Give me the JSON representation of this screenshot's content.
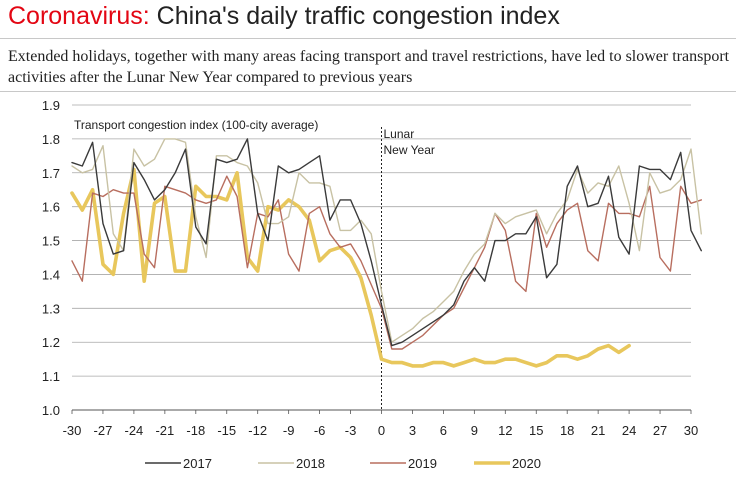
{
  "header": {
    "title_lead": "Coronavirus:",
    "title_rest": " China's daily traffic congestion index",
    "subtitle": "Extended holidays, together with many areas facing transport and travel restrictions, have led to slower transport activities after the Lunar New Year compared to previous years"
  },
  "chart_data": {
    "type": "line",
    "title": "Coronavirus: China's daily traffic congestion index",
    "subtitle": "Extended holidays, together with many areas facing transport and travel restrictions, have led to slower transport activities after the Lunar New Year compared to previous years",
    "inner_label": "Transport congestion index (100-city average)",
    "annotation": "Lunar New Year",
    "annotation_lines": [
      "Lunar",
      "New Year"
    ],
    "annotation_x": 0,
    "xlabel": "",
    "ylabel": "",
    "xlim": [
      -30,
      30
    ],
    "ylim": [
      1.0,
      1.9
    ],
    "xticks": [
      -30,
      -27,
      -24,
      -21,
      -18,
      -15,
      -12,
      -9,
      -6,
      -3,
      0,
      3,
      6,
      9,
      12,
      15,
      18,
      21,
      24,
      27,
      30
    ],
    "yticks": [
      "1.0",
      "1.1",
      "1.2",
      "1.3",
      "1.4",
      "1.5",
      "1.6",
      "1.7",
      "1.8",
      "1.9"
    ],
    "ytick_values": [
      1.0,
      1.1,
      1.2,
      1.3,
      1.4,
      1.5,
      1.6,
      1.7,
      1.8,
      1.9
    ],
    "x_start": -30,
    "series": [
      {
        "name": "2017",
        "color": "#3a3a3a",
        "width": 1.4,
        "values": [
          1.73,
          1.72,
          1.79,
          1.55,
          1.46,
          1.47,
          1.73,
          1.68,
          1.62,
          1.65,
          1.7,
          1.77,
          1.54,
          1.49,
          1.74,
          1.73,
          1.74,
          1.8,
          1.58,
          1.5,
          1.72,
          1.7,
          1.71,
          1.73,
          1.75,
          1.56,
          1.62,
          1.62,
          1.55,
          1.44,
          1.31,
          1.19,
          1.2,
          1.22,
          1.24,
          1.26,
          1.28,
          1.31,
          1.38,
          1.42,
          1.38,
          1.5,
          1.5,
          1.52,
          1.52,
          1.57,
          1.39,
          1.43,
          1.66,
          1.72,
          1.6,
          1.61,
          1.69,
          1.51,
          1.46,
          1.72,
          1.71,
          1.71,
          1.68,
          1.76,
          1.53,
          1.47
        ]
      },
      {
        "name": "2018",
        "color": "#c8c2a4",
        "width": 1.4,
        "values": [
          1.72,
          1.7,
          1.71,
          1.78,
          1.52,
          1.47,
          1.77,
          1.72,
          1.74,
          1.8,
          1.8,
          1.79,
          1.57,
          1.45,
          1.75,
          1.75,
          1.73,
          1.72,
          1.67,
          1.55,
          1.55,
          1.57,
          1.7,
          1.67,
          1.67,
          1.66,
          1.53,
          1.53,
          1.56,
          1.52,
          1.35,
          1.2,
          1.22,
          1.24,
          1.27,
          1.29,
          1.32,
          1.35,
          1.41,
          1.46,
          1.49,
          1.58,
          1.55,
          1.57,
          1.58,
          1.59,
          1.52,
          1.58,
          1.62,
          1.71,
          1.64,
          1.67,
          1.66,
          1.72,
          1.61,
          1.47,
          1.7,
          1.64,
          1.65,
          1.68,
          1.77,
          1.52
        ]
      },
      {
        "name": "2019",
        "color": "#b86e5f",
        "width": 1.4,
        "values": [
          1.44,
          1.38,
          1.64,
          1.63,
          1.65,
          1.64,
          1.64,
          1.46,
          1.42,
          1.66,
          1.65,
          1.64,
          1.62,
          1.61,
          1.62,
          1.69,
          1.63,
          1.42,
          1.58,
          1.57,
          1.62,
          1.46,
          1.41,
          1.58,
          1.6,
          1.52,
          1.48,
          1.49,
          1.44,
          1.37,
          1.3,
          1.18,
          1.18,
          1.2,
          1.22,
          1.25,
          1.28,
          1.3,
          1.36,
          1.42,
          1.48,
          1.58,
          1.53,
          1.38,
          1.35,
          1.58,
          1.48,
          1.55,
          1.59,
          1.61,
          1.47,
          1.44,
          1.61,
          1.58,
          1.58,
          1.57,
          1.66,
          1.45,
          1.41,
          1.66,
          1.61,
          1.62
        ]
      },
      {
        "name": "2020",
        "color": "#e8c75c",
        "width": 3.6,
        "values": [
          1.64,
          1.59,
          1.65,
          1.43,
          1.4,
          1.58,
          1.71,
          1.38,
          1.61,
          1.63,
          1.41,
          1.41,
          1.66,
          1.63,
          1.63,
          1.62,
          1.7,
          1.45,
          1.41,
          1.6,
          1.59,
          1.62,
          1.6,
          1.56,
          1.44,
          1.47,
          1.48,
          1.45,
          1.39,
          1.28,
          1.15,
          1.14,
          1.14,
          1.13,
          1.13,
          1.14,
          1.14,
          1.13,
          1.14,
          1.15,
          1.14,
          1.14,
          1.15,
          1.15,
          1.14,
          1.13,
          1.14,
          1.16,
          1.16,
          1.15,
          1.16,
          1.18,
          1.19,
          1.17,
          1.19
        ]
      }
    ]
  }
}
